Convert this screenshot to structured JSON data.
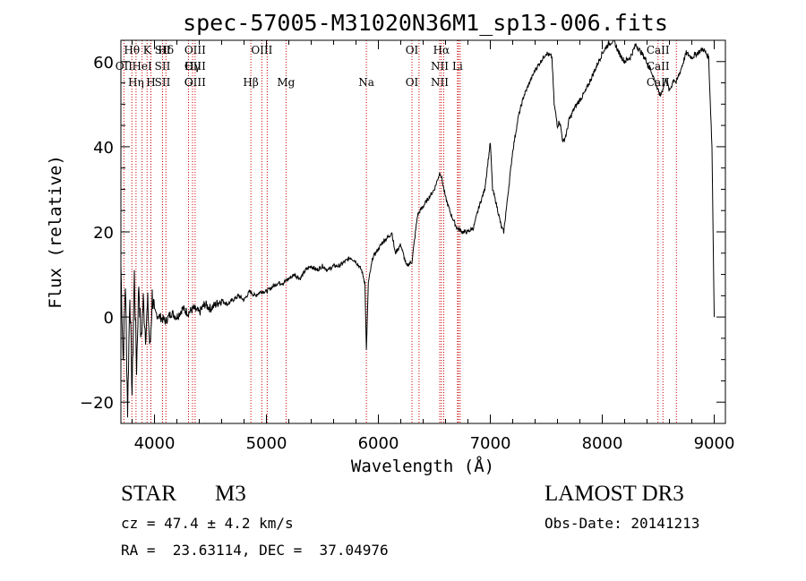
{
  "chart_data": {
    "type": "line",
    "title": "spec-57005-M31020N36M1_sp13-006.fits",
    "xlabel": "Wavelength (Å)",
    "ylabel": "Flux (relative)",
    "xlim": [
      3700,
      9100
    ],
    "ylim": [
      -25,
      65
    ],
    "xticks": [
      4000,
      5000,
      6000,
      7000,
      8000,
      9000
    ],
    "yticks": [
      -20,
      0,
      20,
      40,
      60
    ],
    "series": [
      {
        "name": "flux",
        "x": [
          3700,
          3720,
          3740,
          3760,
          3780,
          3800,
          3820,
          3840,
          3860,
          3880,
          3900,
          3920,
          3940,
          3960,
          3980,
          4000,
          4050,
          4100,
          4150,
          4200,
          4250,
          4300,
          4350,
          4400,
          4450,
          4500,
          4550,
          4600,
          4650,
          4700,
          4750,
          4800,
          4850,
          4900,
          4950,
          5000,
          5050,
          5100,
          5150,
          5200,
          5250,
          5300,
          5350,
          5400,
          5450,
          5500,
          5550,
          5600,
          5650,
          5700,
          5750,
          5800,
          5850,
          5880,
          5893,
          5910,
          5950,
          6000,
          6050,
          6100,
          6120,
          6150,
          6200,
          6250,
          6300,
          6350,
          6400,
          6450,
          6500,
          6550,
          6563,
          6600,
          6650,
          6700,
          6750,
          6800,
          6850,
          6900,
          6950,
          7000,
          7020,
          7050,
          7100,
          7120,
          7150,
          7200,
          7250,
          7300,
          7350,
          7400,
          7450,
          7500,
          7550,
          7570,
          7600,
          7620,
          7650,
          7680,
          7700,
          7750,
          7800,
          7850,
          7900,
          7950,
          8000,
          8050,
          8100,
          8150,
          8200,
          8250,
          8300,
          8350,
          8400,
          8450,
          8500,
          8520,
          8545,
          8570,
          8600,
          8640,
          8660,
          8700,
          8750,
          8800,
          8850,
          8900,
          8950,
          8980,
          9000
        ],
        "y": [
          12,
          -10,
          8,
          -22,
          6,
          -18,
          10,
          -12,
          8,
          -6,
          4,
          -4,
          3,
          -8,
          5,
          1,
          0,
          -1,
          1,
          0,
          2,
          1,
          2,
          1,
          3,
          2,
          3,
          4,
          3,
          4,
          5,
          4,
          6,
          5,
          6,
          6,
          7,
          8,
          8,
          9,
          10,
          9,
          11,
          12,
          11,
          12,
          11,
          12,
          12,
          13,
          14,
          13,
          11,
          8,
          -8,
          8,
          14,
          16,
          18,
          19,
          20,
          15,
          17,
          12,
          13,
          24,
          26,
          28,
          30,
          34,
          33,
          28,
          24,
          21,
          20,
          20,
          21,
          26,
          30,
          41,
          30,
          27,
          21,
          20,
          27,
          39,
          47,
          52,
          55,
          58,
          60,
          62,
          61,
          50,
          45,
          46,
          41,
          43,
          46,
          49,
          51,
          53,
          56,
          59,
          62,
          64,
          65,
          62,
          60,
          61,
          64,
          62,
          60,
          57,
          53,
          52,
          54,
          56,
          53,
          56,
          55,
          58,
          62,
          61,
          62,
          63,
          61,
          40,
          0
        ]
      }
    ],
    "spectral_lines": [
      {
        "label": "Hθ",
        "wavelength": 3798
      },
      {
        "label": "K",
        "wavelength": 3934
      },
      {
        "label": "Hδ",
        "wavelength": 4102
      },
      {
        "label": "OII",
        "wavelength": 3727
      },
      {
        "label": "HeI",
        "wavelength": 3889
      },
      {
        "label": "SII",
        "wavelength": 4072
      },
      {
        "label": "OIII",
        "wavelength": 4363
      },
      {
        "label": "Hγ",
        "wavelength": 4340
      },
      {
        "label": "G",
        "wavelength": 4304
      },
      {
        "label": "OIII",
        "wavelength": 4959
      },
      {
        "label": "OIII",
        "wavelength": 5007
      },
      {
        "label": "Hβ",
        "wavelength": 4861
      },
      {
        "label": "Mg",
        "wavelength": 5175
      },
      {
        "label": "OIII",
        "wavelength": 3727
      },
      {
        "label": "Hη",
        "wavelength": 3835
      },
      {
        "label": "H",
        "wavelength": 3968
      },
      {
        "label": "Na",
        "wavelength": 5893
      },
      {
        "label": "OI",
        "wavelength": 6300
      },
      {
        "label": "OI",
        "wavelength": 6363
      },
      {
        "label": "Hα",
        "wavelength": 6563
      },
      {
        "label": "SII",
        "wavelength": 6716
      },
      {
        "label": "NII",
        "wavelength": 6548
      },
      {
        "label": "Li",
        "wavelength": 6707
      },
      {
        "label": "NII",
        "wavelength": 6584
      },
      {
        "label": "SII",
        "wavelength": 6731
      },
      {
        "label": "CaII",
        "wavelength": 8498
      },
      {
        "label": "CaII",
        "wavelength": 8542
      },
      {
        "label": "CaII",
        "wavelength": 8662
      }
    ],
    "line_label_rows": [
      [
        "Hθ",
        "K",
        "Hδ",
        "OIII",
        "OIII",
        "OI",
        "Hα",
        "SII",
        "CaII"
      ],
      [
        "OII",
        "HeI",
        "SII",
        "Hγ",
        "OIII",
        "NII",
        "Li",
        "CaII"
      ],
      [
        "OIII",
        "Hη",
        "H",
        "G",
        "Hβ",
        "Mg",
        "Na",
        "OI",
        "NII",
        "SII",
        "CaII"
      ]
    ],
    "line_color": "#cc0000",
    "curve_color": "#000000"
  },
  "info": {
    "object_type": "STAR",
    "subclass": "M3",
    "survey": "LAMOST DR3",
    "cz": "cz = 47.4 ± 4.2 km/s",
    "obs_date": "Obs-Date: 20141213",
    "radec": "RA =  23.63114, DEC =  37.04976"
  }
}
